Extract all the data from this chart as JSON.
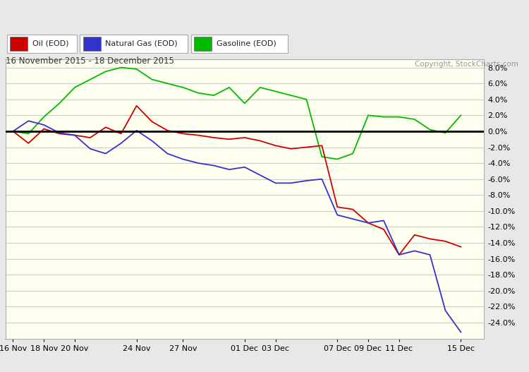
{
  "title_date": "16 November 2015 - 18 December 2015",
  "copyright": "Copyright, StockCharts.com",
  "x_labels": [
    "16 Nov",
    "18 Nov",
    "20 Nov",
    "24 Nov",
    "27 Nov",
    "01 Dec",
    "03 Dec",
    "07 Dec",
    "09 Dec",
    "11 Dec",
    "15 Dec"
  ],
  "x_positions": [
    0,
    2,
    4,
    8,
    11,
    15,
    17,
    21,
    23,
    25,
    29
  ],
  "oil_data": [
    [
      0,
      0.0
    ],
    [
      1,
      -1.5
    ],
    [
      2,
      0.3
    ],
    [
      3,
      -0.3
    ],
    [
      4,
      -0.5
    ],
    [
      5,
      -0.8
    ],
    [
      6,
      0.5
    ],
    [
      7,
      -0.3
    ],
    [
      8,
      3.2
    ],
    [
      9,
      1.2
    ],
    [
      10,
      0.1
    ],
    [
      11,
      -0.3
    ],
    [
      12,
      -0.5
    ],
    [
      13,
      -0.8
    ],
    [
      14,
      -1.0
    ],
    [
      15,
      -0.8
    ],
    [
      16,
      -1.2
    ],
    [
      17,
      -1.8
    ],
    [
      18,
      -2.2
    ],
    [
      19,
      -2.0
    ],
    [
      20,
      -1.8
    ],
    [
      21,
      -9.5
    ],
    [
      22,
      -9.8
    ],
    [
      23,
      -11.5
    ],
    [
      24,
      -12.3
    ],
    [
      25,
      -15.5
    ],
    [
      26,
      -13.0
    ],
    [
      27,
      -13.5
    ],
    [
      28,
      -13.8
    ],
    [
      29,
      -14.5
    ]
  ],
  "ng_data": [
    [
      0,
      0.0
    ],
    [
      1,
      1.3
    ],
    [
      2,
      0.8
    ],
    [
      3,
      -0.2
    ],
    [
      4,
      -0.5
    ],
    [
      5,
      -2.2
    ],
    [
      6,
      -2.8
    ],
    [
      7,
      -1.5
    ],
    [
      8,
      0.1
    ],
    [
      9,
      -1.2
    ],
    [
      10,
      -2.8
    ],
    [
      11,
      -3.5
    ],
    [
      12,
      -4.0
    ],
    [
      13,
      -4.3
    ],
    [
      14,
      -4.8
    ],
    [
      15,
      -4.5
    ],
    [
      16,
      -5.5
    ],
    [
      17,
      -6.5
    ],
    [
      18,
      -6.5
    ],
    [
      19,
      -6.2
    ],
    [
      20,
      -6.0
    ],
    [
      21,
      -10.5
    ],
    [
      22,
      -11.0
    ],
    [
      23,
      -11.5
    ],
    [
      24,
      -11.2
    ],
    [
      25,
      -15.5
    ],
    [
      26,
      -15.0
    ],
    [
      27,
      -15.5
    ],
    [
      28,
      -22.5
    ],
    [
      29,
      -25.2
    ]
  ],
  "gasoline_data": [
    [
      0,
      0.0
    ],
    [
      1,
      -0.3
    ],
    [
      2,
      1.8
    ],
    [
      3,
      3.5
    ],
    [
      4,
      5.5
    ],
    [
      5,
      6.5
    ],
    [
      6,
      7.5
    ],
    [
      7,
      8.0
    ],
    [
      8,
      7.8
    ],
    [
      9,
      6.5
    ],
    [
      10,
      6.0
    ],
    [
      11,
      5.5
    ],
    [
      12,
      4.8
    ],
    [
      13,
      4.5
    ],
    [
      14,
      5.5
    ],
    [
      15,
      3.5
    ],
    [
      16,
      5.5
    ],
    [
      17,
      5.0
    ],
    [
      18,
      4.5
    ],
    [
      19,
      4.0
    ],
    [
      20,
      -3.2
    ],
    [
      21,
      -3.5
    ],
    [
      22,
      -2.8
    ],
    [
      23,
      2.0
    ],
    [
      24,
      1.8
    ],
    [
      25,
      1.8
    ],
    [
      26,
      1.5
    ],
    [
      27,
      0.2
    ],
    [
      28,
      -0.2
    ],
    [
      29,
      2.0
    ]
  ],
  "oil_color": "#cc0000",
  "ng_color": "#3333cc",
  "gasoline_color": "#00bb00",
  "background_plot": "#fffff0",
  "background_outer": "#e8e8e8",
  "zero_line_color": "#000000",
  "grid_color": "#cccccc",
  "ylim": [
    -26,
    9
  ],
  "yticks": [
    -24,
    -22,
    -20,
    -18,
    -16,
    -14,
    -12,
    -10,
    -8,
    -6,
    -4,
    -2,
    0,
    2,
    4,
    6,
    8
  ]
}
